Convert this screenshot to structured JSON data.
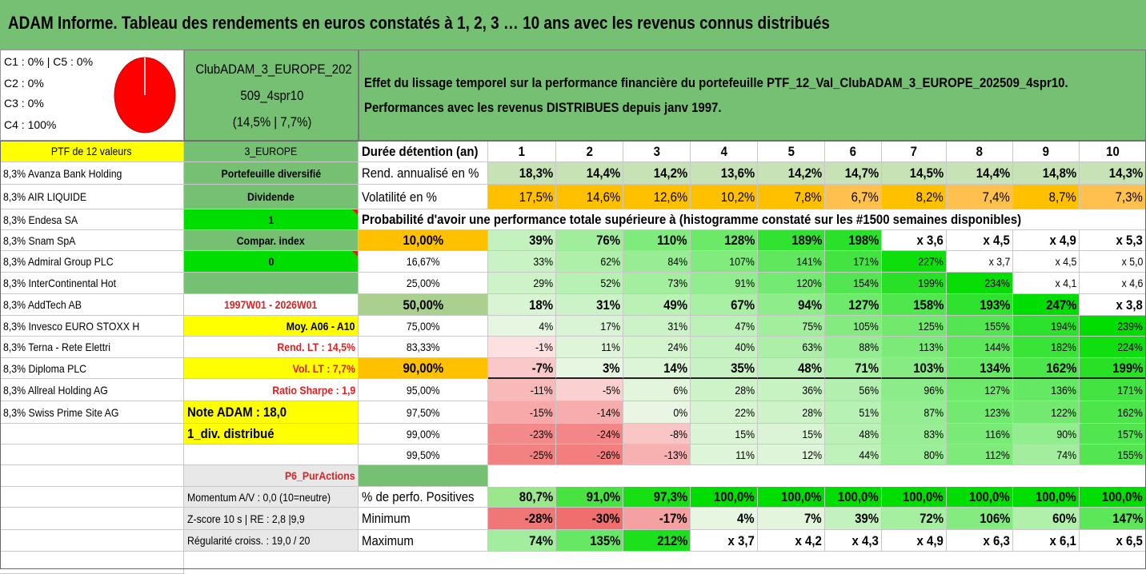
{
  "title": "ADAM Informe. Tableau des rendements en euros constatés à 1, 2, 3 … 10 ans avec les revenus connus distribués",
  "pie_legend": [
    "C1 : 0% | C5 : 0%",
    "C2 : 0%",
    "C3 : 0%",
    "C4 : 100%"
  ],
  "pie_color": "#ff0000",
  "portfolio_name": [
    "ClubADAM_3_EUROPE_202",
    "509_4spr10",
    "(14,5% | 7,7%)"
  ],
  "description": [
    "Effet du lissage temporel sur la performance financière du portefeuille PTF_12_Val_ClubADAM_3_EUROPE_202509_4spr10.",
    "Performances avec les revenus DISTRIBUES depuis janv 1997."
  ],
  "ptf_label": "PTF de 12 valeurs",
  "holdings": [
    "8,3% Avanza Bank Holding",
    "8,3% AIR LIQUIDE",
    "8,3% Endesa SA",
    "8,3% Snam SpA",
    "8,3% Admiral Group PLC",
    "8,3% InterContinental Hot",
    "8,3% AddTech AB",
    "8,3% Invesco EURO STOXX H",
    "8,3% Terna - Rete Elettri",
    "8,3% Diploma PLC",
    "8,3% Allreal Holding AG",
    "8,3% Swiss Prime Site AG"
  ],
  "info_col": {
    "zone": "3_EUROPE",
    "diversification": "Portefeuille diversifié",
    "dividend_label": "Dividende",
    "dividend_value": "1",
    "compar_index": "Compar. index",
    "compar_value": "0",
    "period": "1997W01 - 2026W01",
    "moy": "Moy. A06 - A10",
    "rend_lt": "Rend. LT : 14,5%",
    "vol_lt": "Vol. LT : 7,7%",
    "sharpe": "Ratio Sharpe : 1,9",
    "note": "Note ADAM : 18,0",
    "div_distrib": "1_div. distribué",
    "p6": "P6_PurActions",
    "momentum": "Momentum A/V : 0,0 (10=neutre)",
    "zscore": "Z-score 10 s | RE : 2,8 |9,9",
    "regularite": "Régularité croiss. : 19,0 / 20"
  },
  "duration_label": "Durée détention (an)",
  "years": [
    "1",
    "2",
    "3",
    "4",
    "5",
    "6",
    "7",
    "8",
    "9",
    "10"
  ],
  "rend_label": "Rend. annualisé en %",
  "rend": [
    "18,3%",
    "14,4%",
    "14,2%",
    "13,6%",
    "14,2%",
    "14,7%",
    "14,5%",
    "14,4%",
    "14,8%",
    "14,3%"
  ],
  "vol_label": "Volatilité en %",
  "vol": [
    "17,5%",
    "14,6%",
    "12,6%",
    "10,2%",
    "7,8%",
    "6,7%",
    "8,2%",
    "7,4%",
    "8,7%",
    "7,3%"
  ],
  "prob_label": "Probabilité d'avoir une performance totale supérieure à (histogramme constaté sur les #1500 semaines disponibles)",
  "prob_rows": [
    {
      "p": "10,00%",
      "v": [
        "39%",
        "76%",
        "110%",
        "128%",
        "189%",
        "198%",
        "x 3,6",
        "x 4,5",
        "x 4,9",
        "x 5,3"
      ]
    },
    {
      "p": "16,67%",
      "v": [
        "33%",
        "62%",
        "84%",
        "107%",
        "141%",
        "171%",
        "227%",
        "x 3,7",
        "x 4,5",
        "x 5,0"
      ]
    },
    {
      "p": "25,00%",
      "v": [
        "29%",
        "52%",
        "73%",
        "91%",
        "120%",
        "154%",
        "199%",
        "234%",
        "x 4,1",
        "x 4,6"
      ]
    },
    {
      "p": "50,00%",
      "v": [
        "18%",
        "31%",
        "49%",
        "67%",
        "94%",
        "127%",
        "158%",
        "193%",
        "247%",
        "x 3,8"
      ]
    },
    {
      "p": "75,00%",
      "v": [
        "4%",
        "17%",
        "31%",
        "47%",
        "75%",
        "105%",
        "125%",
        "155%",
        "194%",
        "239%"
      ]
    },
    {
      "p": "83,33%",
      "v": [
        "-1%",
        "11%",
        "24%",
        "40%",
        "63%",
        "88%",
        "113%",
        "144%",
        "182%",
        "224%"
      ]
    },
    {
      "p": "90,00%",
      "v": [
        "-7%",
        "3%",
        "14%",
        "35%",
        "48%",
        "71%",
        "103%",
        "134%",
        "162%",
        "199%"
      ]
    },
    {
      "p": "95,00%",
      "v": [
        "-11%",
        "-5%",
        "6%",
        "28%",
        "36%",
        "56%",
        "96%",
        "127%",
        "136%",
        "171%"
      ]
    },
    {
      "p": "97,50%",
      "v": [
        "-15%",
        "-14%",
        "0%",
        "22%",
        "28%",
        "51%",
        "87%",
        "123%",
        "122%",
        "162%"
      ]
    },
    {
      "p": "99,00%",
      "v": [
        "-23%",
        "-24%",
        "-8%",
        "15%",
        "15%",
        "48%",
        "83%",
        "116%",
        "90%",
        "157%"
      ]
    },
    {
      "p": "99,50%",
      "v": [
        "-25%",
        "-26%",
        "-13%",
        "11%",
        "12%",
        "44%",
        "80%",
        "112%",
        "74%",
        "155%"
      ]
    }
  ],
  "pos_label": "% de perfo. Positives",
  "pos": [
    "80,7%",
    "91,0%",
    "97,3%",
    "100,0%",
    "100,0%",
    "100,0%",
    "100,0%",
    "100,0%",
    "100,0%",
    "100,0%"
  ],
  "min_label": "Minimum",
  "min": [
    "-28%",
    "-30%",
    "-17%",
    "4%",
    "7%",
    "39%",
    "72%",
    "106%",
    "60%",
    "147%"
  ],
  "max_label": "Maximum",
  "max": [
    "74%",
    "135%",
    "212%",
    "x 3,7",
    "x 4,2",
    "x 4,3",
    "x 4,9",
    "x 6,3",
    "x 6,1",
    "x 6,5"
  ],
  "colors": {
    "header_green": "#76c074",
    "light_green": "#c7e2b4",
    "yellow": "#ffff00",
    "orange": "#ffc000",
    "bright_green": "#00dd00",
    "neg_red": "#f08080",
    "text_red": "#e02020"
  }
}
